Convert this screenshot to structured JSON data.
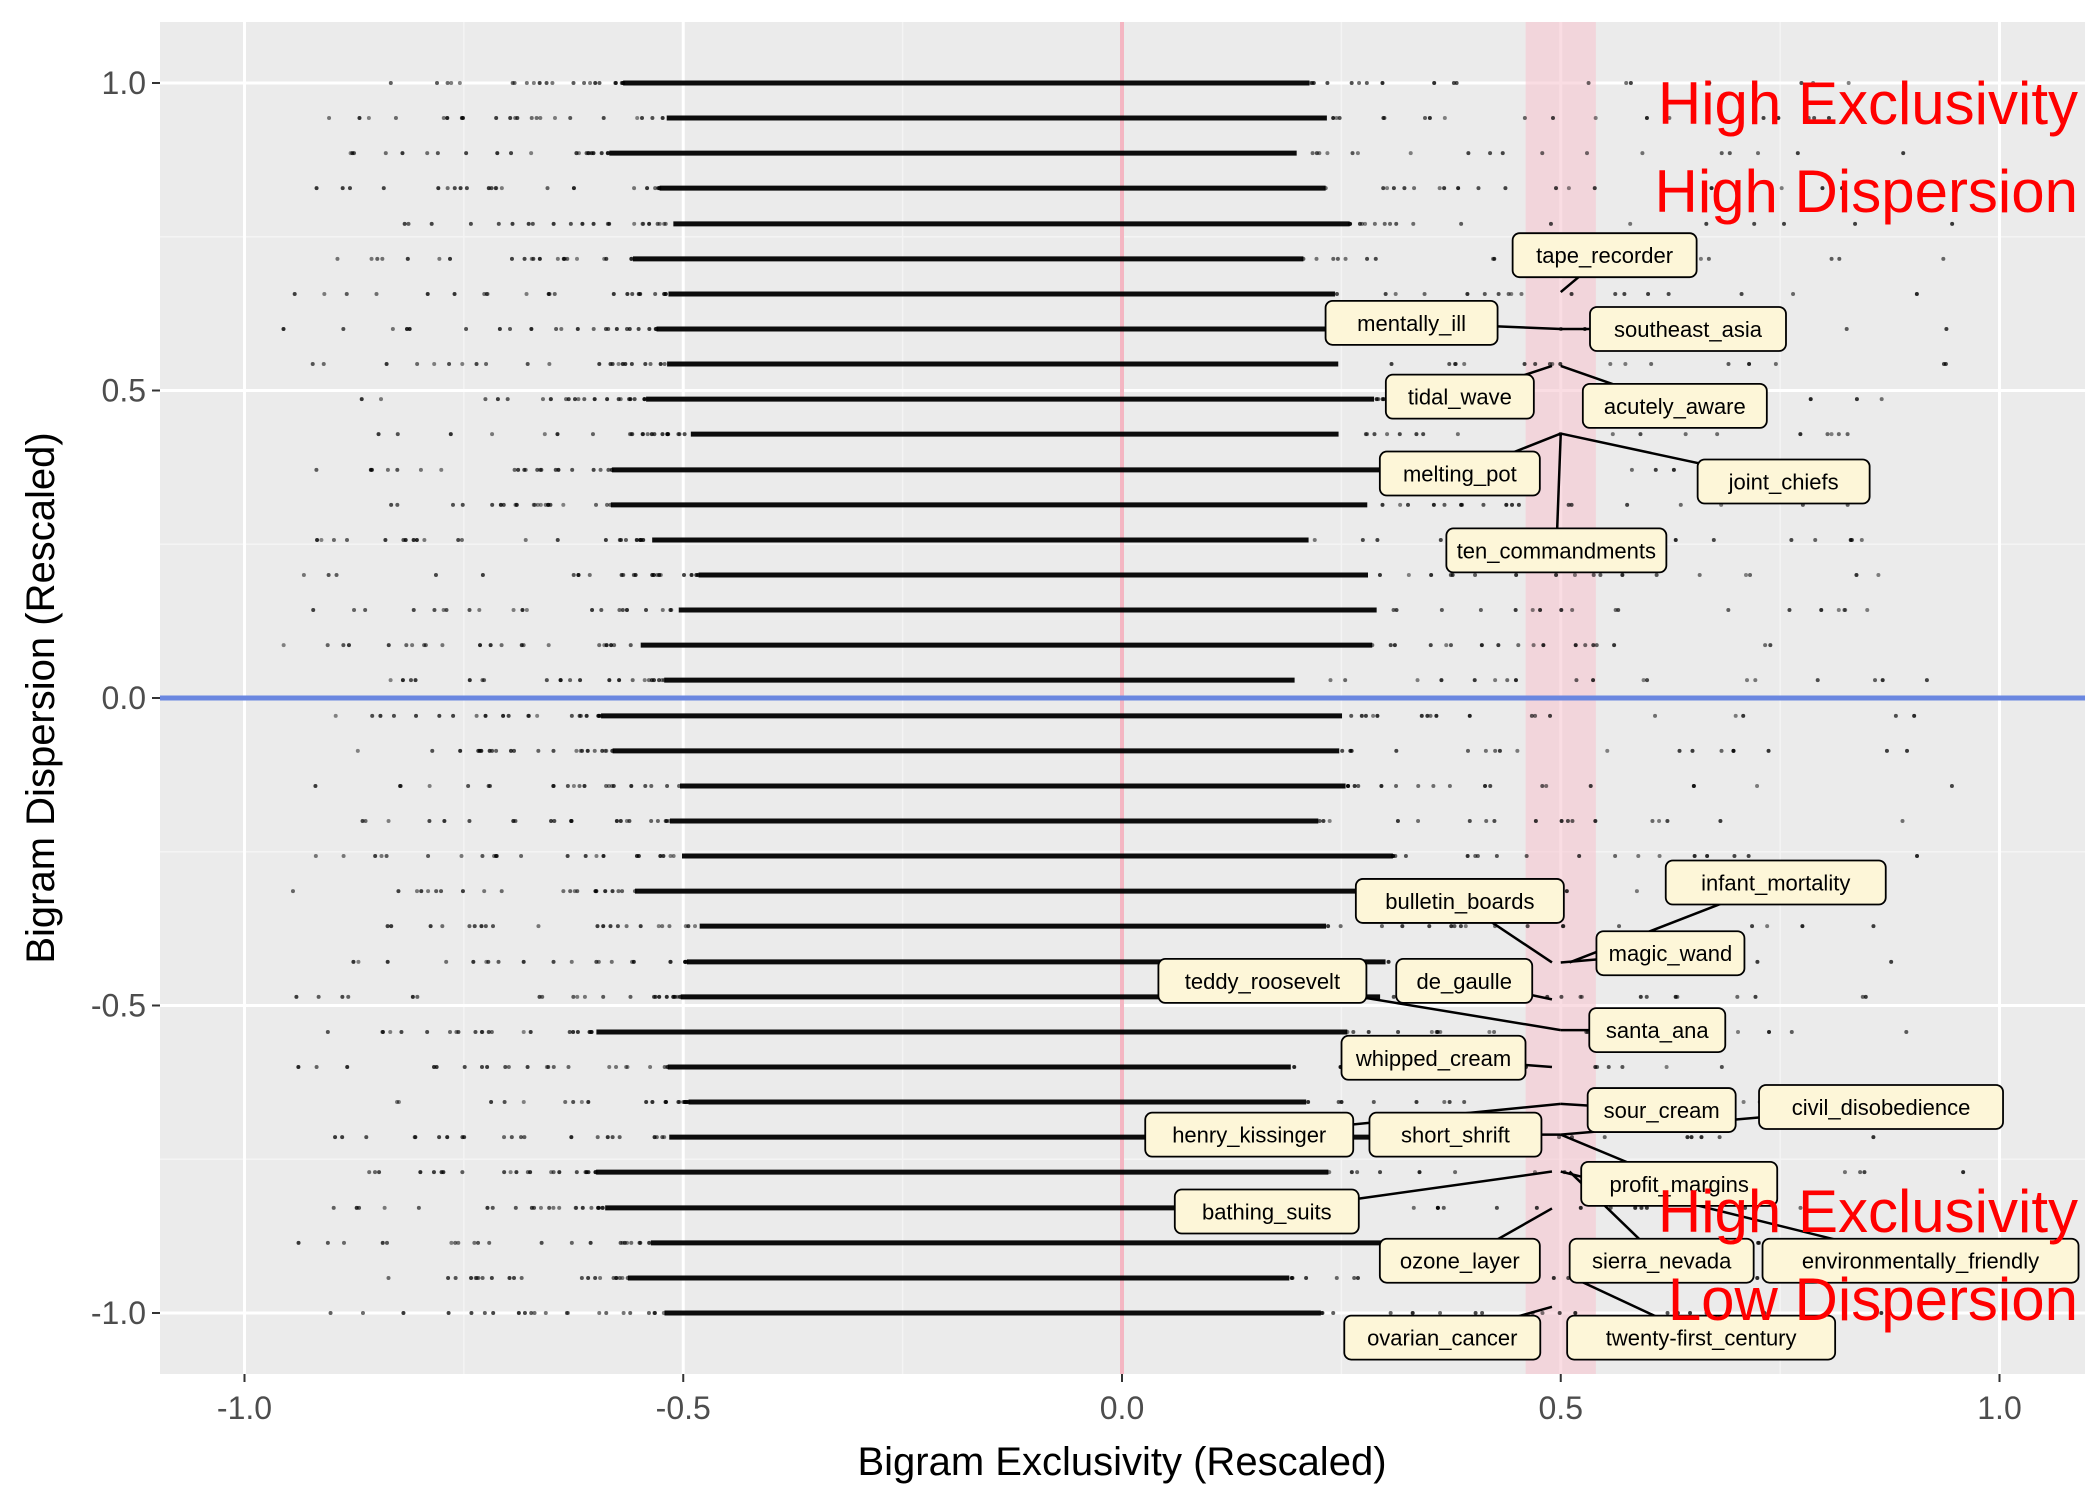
{
  "chart_data": {
    "type": "scatter",
    "title": "",
    "xlabel": "Bigram Exclusivity (Rescaled)",
    "ylabel": "Bigram Dispersion (Rescaled)",
    "xlim": [
      -1.1,
      1.1
    ],
    "ylim": [
      -1.1,
      1.1
    ],
    "x_ticks": [
      {
        "value": -1.0,
        "label": "-1.0"
      },
      {
        "value": -0.5,
        "label": "-0.5"
      },
      {
        "value": 0.0,
        "label": "0.0"
      },
      {
        "value": 0.5,
        "label": "0.5"
      },
      {
        "value": 1.0,
        "label": "1.0"
      }
    ],
    "y_ticks": [
      {
        "value": -1.0,
        "label": "-1.0"
      },
      {
        "value": -0.5,
        "label": "-0.5"
      },
      {
        "value": 0.0,
        "label": "0.0"
      },
      {
        "value": 0.5,
        "label": "0.5"
      },
      {
        "value": 1.0,
        "label": "1.0"
      }
    ],
    "grid": true,
    "background_color": "#ebebeb",
    "point_rows": {
      "y_values": [
        -1.0,
        -0.943,
        -0.886,
        -0.829,
        -0.771,
        -0.714,
        -0.657,
        -0.6,
        -0.543,
        -0.486,
        -0.429,
        -0.371,
        -0.314,
        -0.257,
        -0.2,
        -0.143,
        -0.086,
        -0.029,
        0.029,
        0.086,
        0.143,
        0.2,
        0.257,
        0.314,
        0.371,
        0.429,
        0.486,
        0.543,
        0.6,
        0.657,
        0.714,
        0.771,
        0.829,
        0.886,
        0.943,
        1.0
      ],
      "dense_x_range": [
        -0.6,
        0.25
      ],
      "sparse_x_range": [
        -0.98,
        0.98
      ],
      "color": "#000000"
    },
    "reference_lines": [
      {
        "orientation": "vertical",
        "value": 0.0,
        "color": "#f4b6c2"
      },
      {
        "orientation": "horizontal",
        "value": 0.0,
        "color": "#6a87e0"
      }
    ],
    "highlight_band": {
      "xmin": 0.46,
      "xmax": 0.54,
      "color": "#f7c7d0"
    },
    "annotations": [
      {
        "text": "tape_recorder",
        "point": [
          0.5,
          0.66
        ],
        "box_center": [
          0.55,
          0.72
        ]
      },
      {
        "text": "mentally_ill",
        "point": [
          0.5,
          0.6
        ],
        "box_center": [
          0.33,
          0.61
        ]
      },
      {
        "text": "southeast_asia",
        "point": [
          0.5,
          0.6
        ],
        "box_center": [
          0.645,
          0.6
        ]
      },
      {
        "text": "tidal_wave",
        "point": [
          0.49,
          0.54
        ],
        "box_center": [
          0.385,
          0.49
        ]
      },
      {
        "text": "acutely_aware",
        "point": [
          0.5,
          0.54
        ],
        "box_center": [
          0.63,
          0.475
        ]
      },
      {
        "text": "melting_pot",
        "point": [
          0.5,
          0.43
        ],
        "box_center": [
          0.385,
          0.365
        ]
      },
      {
        "text": "joint_chiefs",
        "point": [
          0.5,
          0.43
        ],
        "box_center": [
          0.754,
          0.352
        ]
      },
      {
        "text": "ten_commandments",
        "point": [
          0.5,
          0.43
        ],
        "box_center": [
          0.495,
          0.24
        ]
      },
      {
        "text": "infant_mortality",
        "point": [
          0.51,
          -0.43
        ],
        "box_center": [
          0.745,
          -0.3
        ]
      },
      {
        "text": "bulletin_boards",
        "point": [
          0.49,
          -0.43
        ],
        "box_center": [
          0.385,
          -0.33
        ]
      },
      {
        "text": "magic_wand",
        "point": [
          0.5,
          -0.43
        ],
        "box_center": [
          0.625,
          -0.415
        ]
      },
      {
        "text": "teddy_roosevelt",
        "point": [
          0.5,
          -0.54
        ],
        "box_center": [
          0.16,
          -0.46
        ]
      },
      {
        "text": "de_gaulle",
        "point": [
          0.49,
          -0.49
        ],
        "box_center": [
          0.39,
          -0.46
        ]
      },
      {
        "text": "santa_ana",
        "point": [
          0.5,
          -0.54
        ],
        "box_center": [
          0.61,
          -0.54
        ]
      },
      {
        "text": "whipped_cream",
        "point": [
          0.49,
          -0.6
        ],
        "box_center": [
          0.355,
          -0.585
        ]
      },
      {
        "text": "sour_cream",
        "point": [
          0.5,
          -0.66
        ],
        "box_center": [
          0.615,
          -0.67
        ]
      },
      {
        "text": "civil_disobedience",
        "point": [
          0.5,
          -0.71
        ],
        "box_center": [
          0.865,
          -0.665
        ]
      },
      {
        "text": "henry_kissinger",
        "point": [
          0.5,
          -0.66
        ],
        "box_center": [
          0.145,
          -0.71
        ]
      },
      {
        "text": "short_shrift",
        "point": [
          0.5,
          -0.71
        ],
        "box_center": [
          0.38,
          -0.71
        ]
      },
      {
        "text": "profit_margins",
        "point": [
          0.5,
          -0.71
        ],
        "box_center": [
          0.635,
          -0.79
        ]
      },
      {
        "text": "bathing_suits",
        "point": [
          0.49,
          -0.77
        ],
        "box_center": [
          0.165,
          -0.835
        ]
      },
      {
        "text": "environmentally_friendly",
        "point": [
          0.5,
          -0.77
        ],
        "box_center": [
          0.91,
          -0.915
        ]
      },
      {
        "text": "ozone_layer",
        "point": [
          0.49,
          -0.83
        ],
        "box_center": [
          0.385,
          -0.915
        ]
      },
      {
        "text": "sierra_nevada",
        "point": [
          0.51,
          -0.77
        ],
        "box_center": [
          0.615,
          -0.915
        ]
      },
      {
        "text": "ovarian_cancer",
        "point": [
          0.49,
          -0.99
        ],
        "box_center": [
          0.365,
          -1.04
        ]
      },
      {
        "text": "twenty-first_century",
        "point": [
          0.51,
          -0.94
        ],
        "box_center": [
          0.66,
          -1.04
        ]
      }
    ],
    "corner_labels": [
      {
        "position": "top-right",
        "lines": [
          "High Exclusivity",
          "High Dispersion"
        ],
        "color": "#ff0000"
      },
      {
        "position": "bottom-right",
        "lines": [
          "High Exclusivity",
          "Low Dispersion"
        ],
        "color": "#ff0000"
      }
    ]
  }
}
